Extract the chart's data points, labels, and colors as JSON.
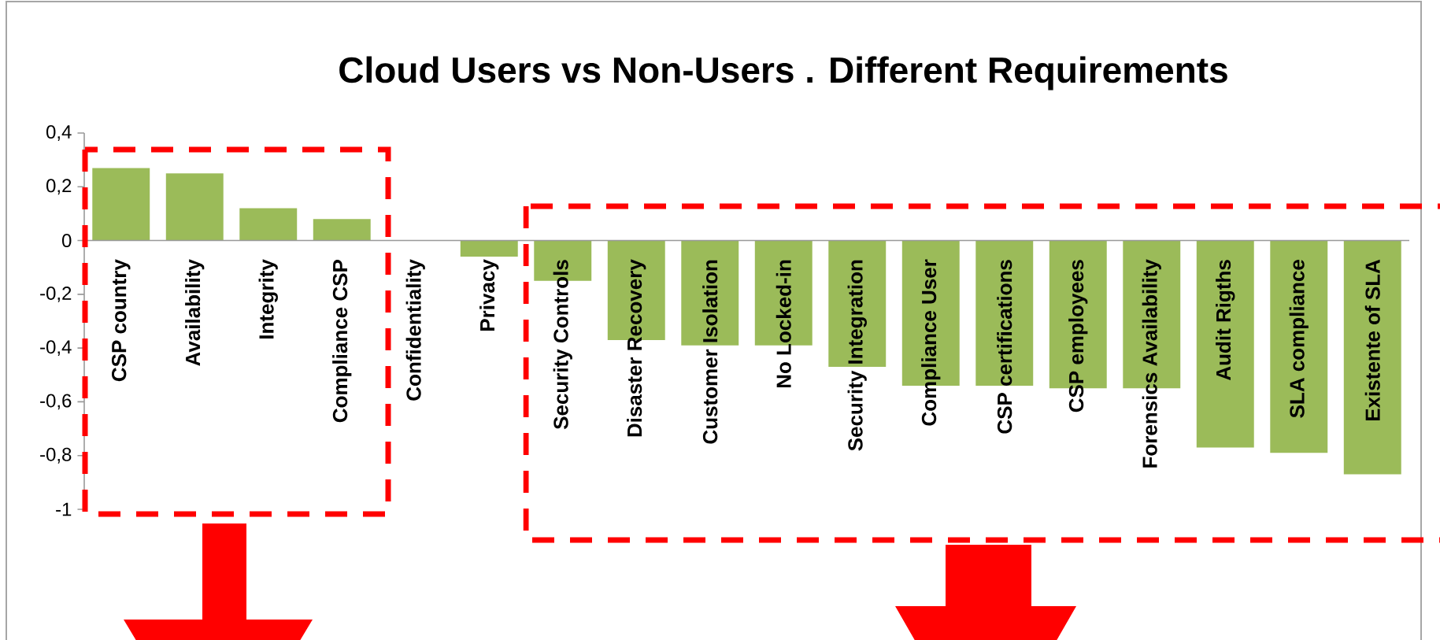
{
  "chart_data": {
    "type": "bar",
    "title": "Cloud Users vs Non-Users . Different Requirements",
    "categories": [
      "CSP country",
      "Availability",
      "Integrity",
      "Compliance CSP",
      "Confidentiality",
      "Privacy",
      "Security Controls",
      "Disaster Recovery",
      "Customer Isolation",
      "No Locked-in",
      "Security Integration",
      "Compliance User",
      "CSP certifications",
      "CSP employees",
      "Forensics Availability",
      "Audit Rigths",
      "SLA compliance",
      "Existente of SLA"
    ],
    "values": [
      0.27,
      0.25,
      0.12,
      0.08,
      0,
      -0.06,
      -0.15,
      -0.37,
      -0.39,
      -0.39,
      -0.47,
      -0.54,
      -0.54,
      -0.55,
      -0.55,
      -0.77,
      -0.79,
      -0.87
    ],
    "color": "#9bbb59",
    "ylim": [
      -1,
      0.4
    ],
    "yticks": [
      {
        "value": 0.4,
        "label": "0,4"
      },
      {
        "value": 0.2,
        "label": "0,2"
      },
      0,
      {
        "value": -0.2,
        "label": "-0,2"
      },
      {
        "value": -0.4,
        "label": "-0,4"
      },
      {
        "value": -0.6,
        "label": "-0,6"
      },
      {
        "value": -0.8,
        "label": "-0,8"
      },
      -1
    ]
  }
}
